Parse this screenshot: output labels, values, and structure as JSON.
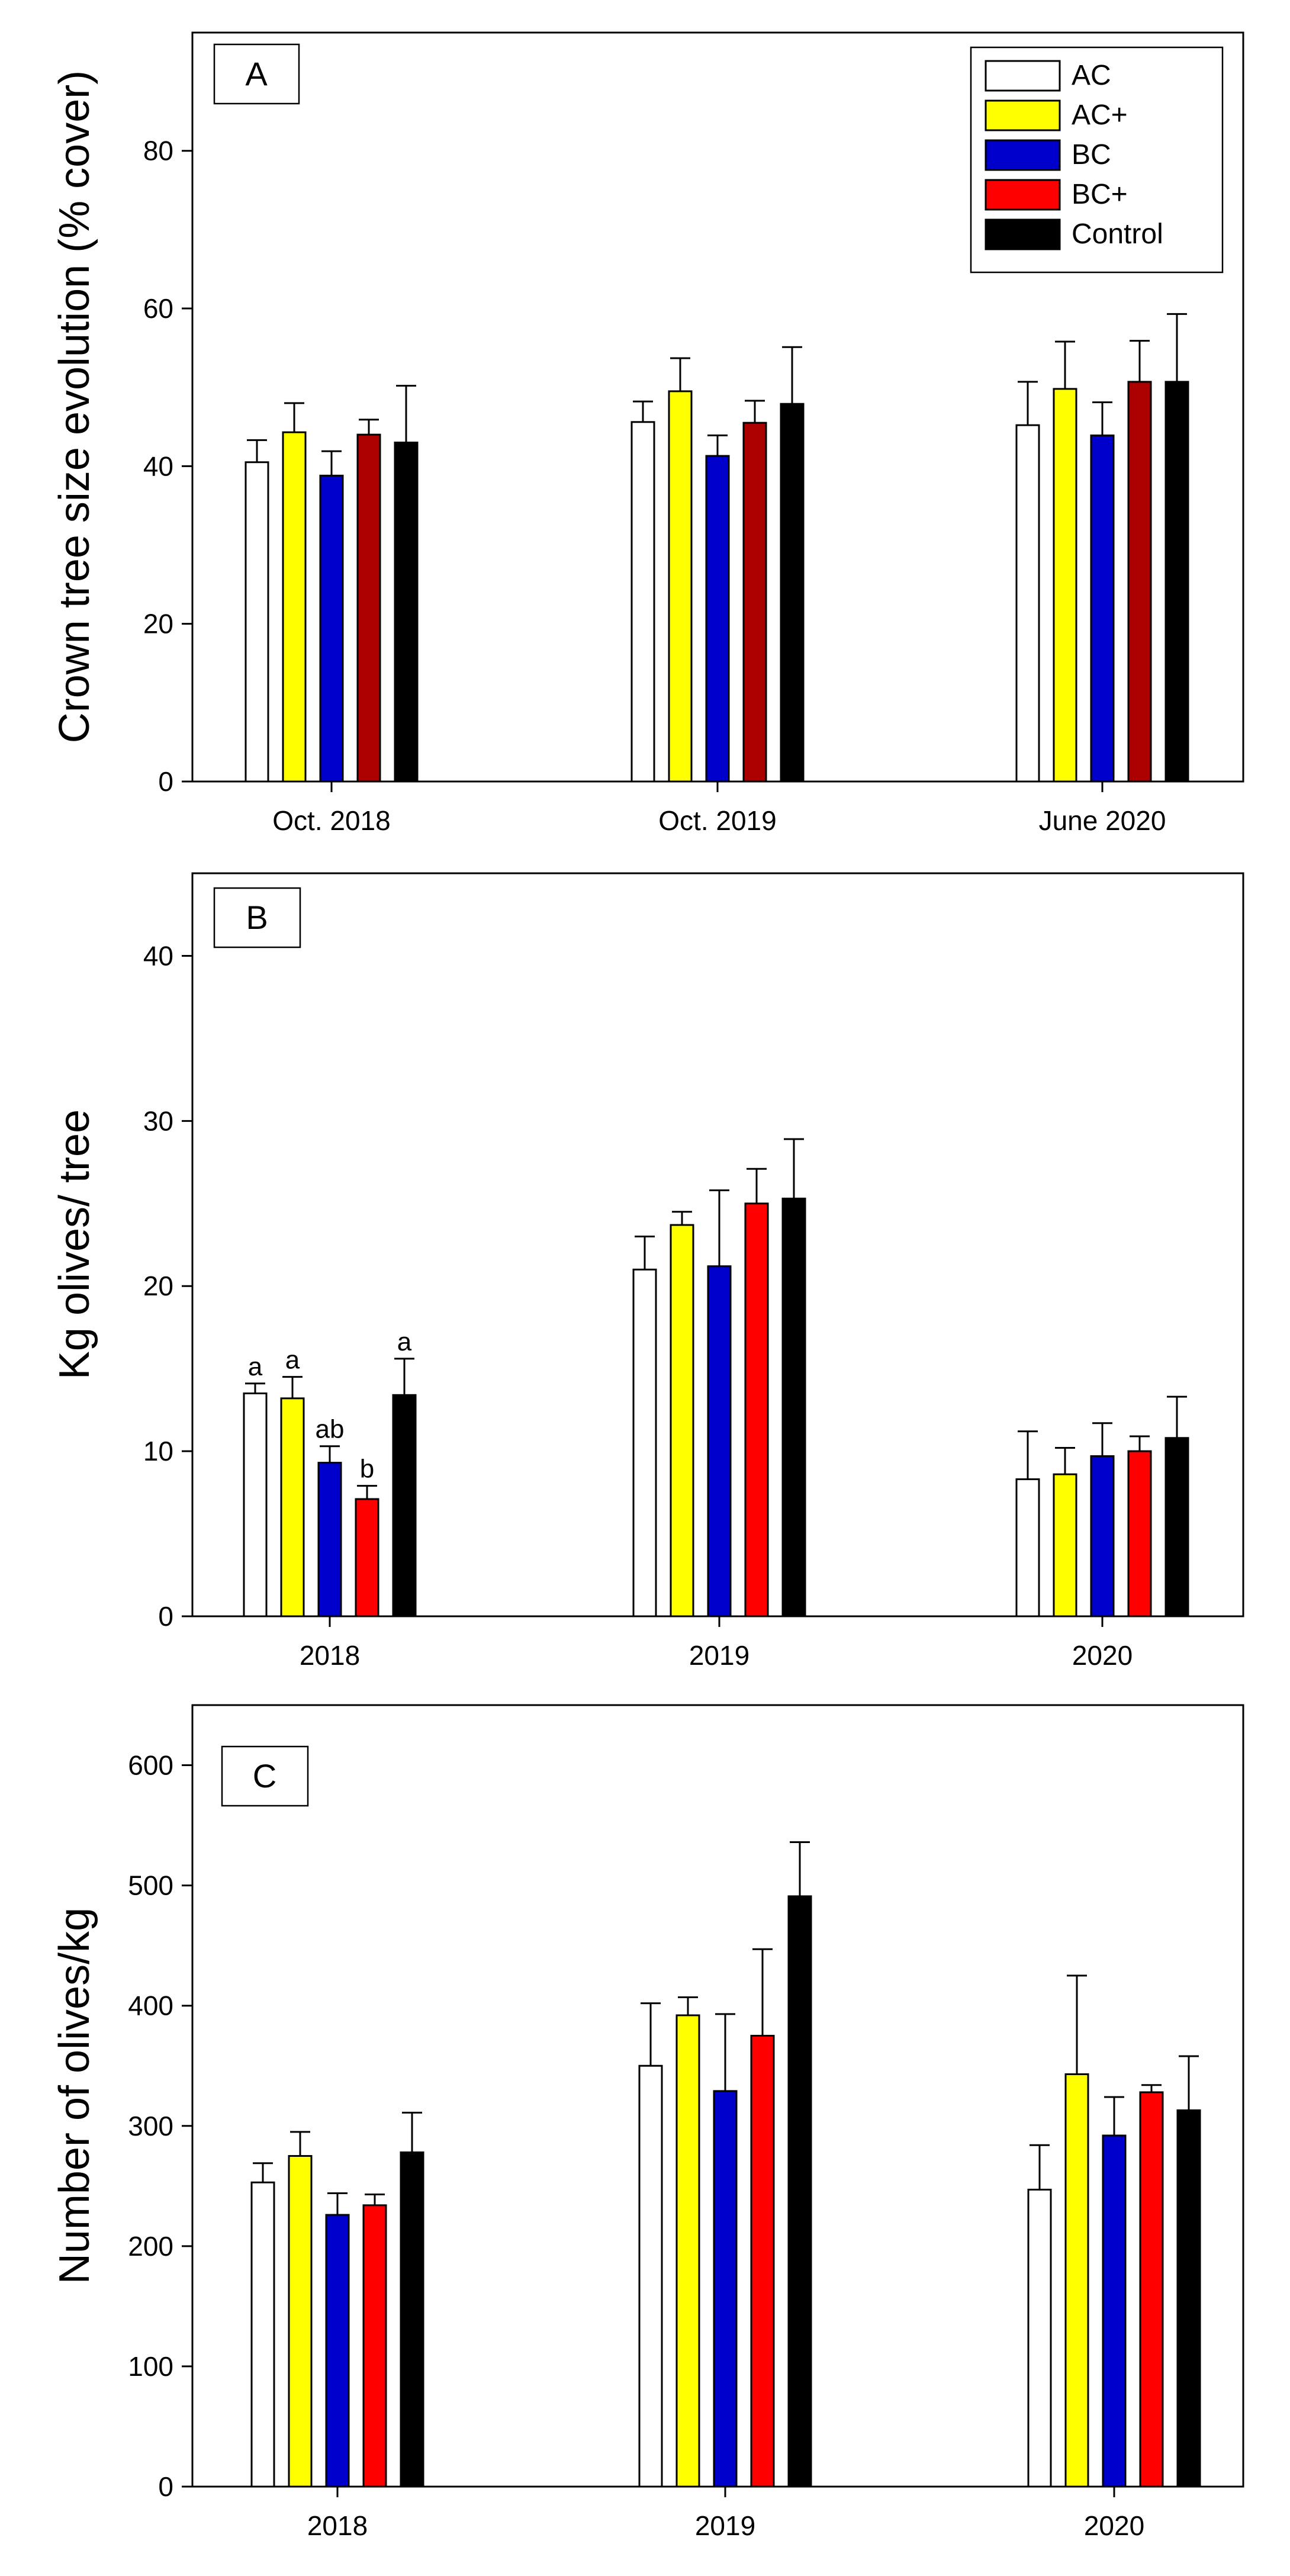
{
  "colors": {
    "AC": "#ffffff",
    "AC+": "#ffff00",
    "BC": "#0000cc",
    "BC+": "#ff0000",
    "BC+_panelA": "#aa0000",
    "Control": "#000000"
  },
  "legend": {
    "entries": [
      "AC",
      "AC+",
      "BC",
      "BC+",
      "Control"
    ]
  },
  "chart_data": [
    {
      "type": "bar",
      "panel_label": "A",
      "title": "",
      "xlabel": "",
      "ylabel": "Crown tree size evolution (% cover)",
      "ylim": [
        0,
        95
      ],
      "yticks": [
        0,
        20,
        40,
        60,
        80
      ],
      "categories": [
        "Oct. 2018",
        "Oct. 2019",
        "June 2020"
      ],
      "legend_position": "top-right",
      "series": [
        {
          "name": "AC",
          "values": [
            40.5,
            45.6,
            45.2
          ],
          "errors": [
            2.8,
            2.6,
            5.5
          ],
          "sig": []
        },
        {
          "name": "AC+",
          "values": [
            44.3,
            49.5,
            49.8
          ],
          "errors": [
            3.7,
            4.2,
            6.0
          ],
          "sig": []
        },
        {
          "name": "BC",
          "values": [
            38.8,
            41.3,
            43.9
          ],
          "errors": [
            3.1,
            2.6,
            4.2
          ],
          "sig": []
        },
        {
          "name": "BC+",
          "values": [
            44.0,
            45.5,
            50.7
          ],
          "errors": [
            1.9,
            2.8,
            5.2
          ],
          "sig": []
        },
        {
          "name": "Control",
          "values": [
            43.0,
            47.9,
            50.7
          ],
          "errors": [
            7.2,
            7.2,
            8.6
          ],
          "sig": []
        }
      ]
    },
    {
      "type": "bar",
      "panel_label": "B",
      "title": "",
      "xlabel": "",
      "ylabel": "Kg olives/ tree",
      "ylim": [
        0,
        45
      ],
      "yticks": [
        0,
        10,
        20,
        30,
        40
      ],
      "categories": [
        "2018",
        "2019",
        "2020"
      ],
      "series": [
        {
          "name": "AC",
          "values": [
            13.5,
            21.0,
            8.3
          ],
          "errors": [
            0.6,
            2.0,
            2.9
          ],
          "sig": [
            "a",
            "",
            ""
          ]
        },
        {
          "name": "AC+",
          "values": [
            13.2,
            23.7,
            8.6
          ],
          "errors": [
            1.3,
            0.8,
            1.6
          ],
          "sig": [
            "a",
            "",
            ""
          ]
        },
        {
          "name": "BC",
          "values": [
            9.3,
            21.2,
            9.7
          ],
          "errors": [
            1.0,
            4.6,
            2.0
          ],
          "sig": [
            "ab",
            "",
            ""
          ]
        },
        {
          "name": "BC+",
          "values": [
            7.1,
            25.0,
            10.0
          ],
          "errors": [
            0.8,
            2.1,
            0.9
          ],
          "sig": [
            "b",
            "",
            ""
          ]
        },
        {
          "name": "Control",
          "values": [
            13.4,
            25.3,
            10.8
          ],
          "errors": [
            2.2,
            3.6,
            2.5
          ],
          "sig": [
            "a",
            "",
            ""
          ]
        }
      ]
    },
    {
      "type": "bar",
      "panel_label": "C",
      "title": "",
      "xlabel": "",
      "ylabel": "Number of olives/kg",
      "ylim": [
        0,
        650
      ],
      "yticks": [
        0,
        100,
        200,
        300,
        400,
        500,
        600
      ],
      "categories": [
        "2018",
        "2019",
        "2020"
      ],
      "series": [
        {
          "name": "AC",
          "values": [
            253,
            350,
            247
          ],
          "errors": [
            16,
            52,
            37
          ],
          "sig": []
        },
        {
          "name": "AC+",
          "values": [
            275,
            392,
            343
          ],
          "errors": [
            20,
            15,
            82
          ],
          "sig": []
        },
        {
          "name": "BC",
          "values": [
            226,
            329,
            292
          ],
          "errors": [
            18,
            64,
            32
          ],
          "sig": []
        },
        {
          "name": "BC+",
          "values": [
            234,
            375,
            328
          ],
          "errors": [
            9,
            72,
            6
          ],
          "sig": []
        },
        {
          "name": "Control",
          "values": [
            278,
            491,
            313
          ],
          "errors": [
            33,
            45,
            45
          ],
          "sig": []
        }
      ]
    }
  ]
}
